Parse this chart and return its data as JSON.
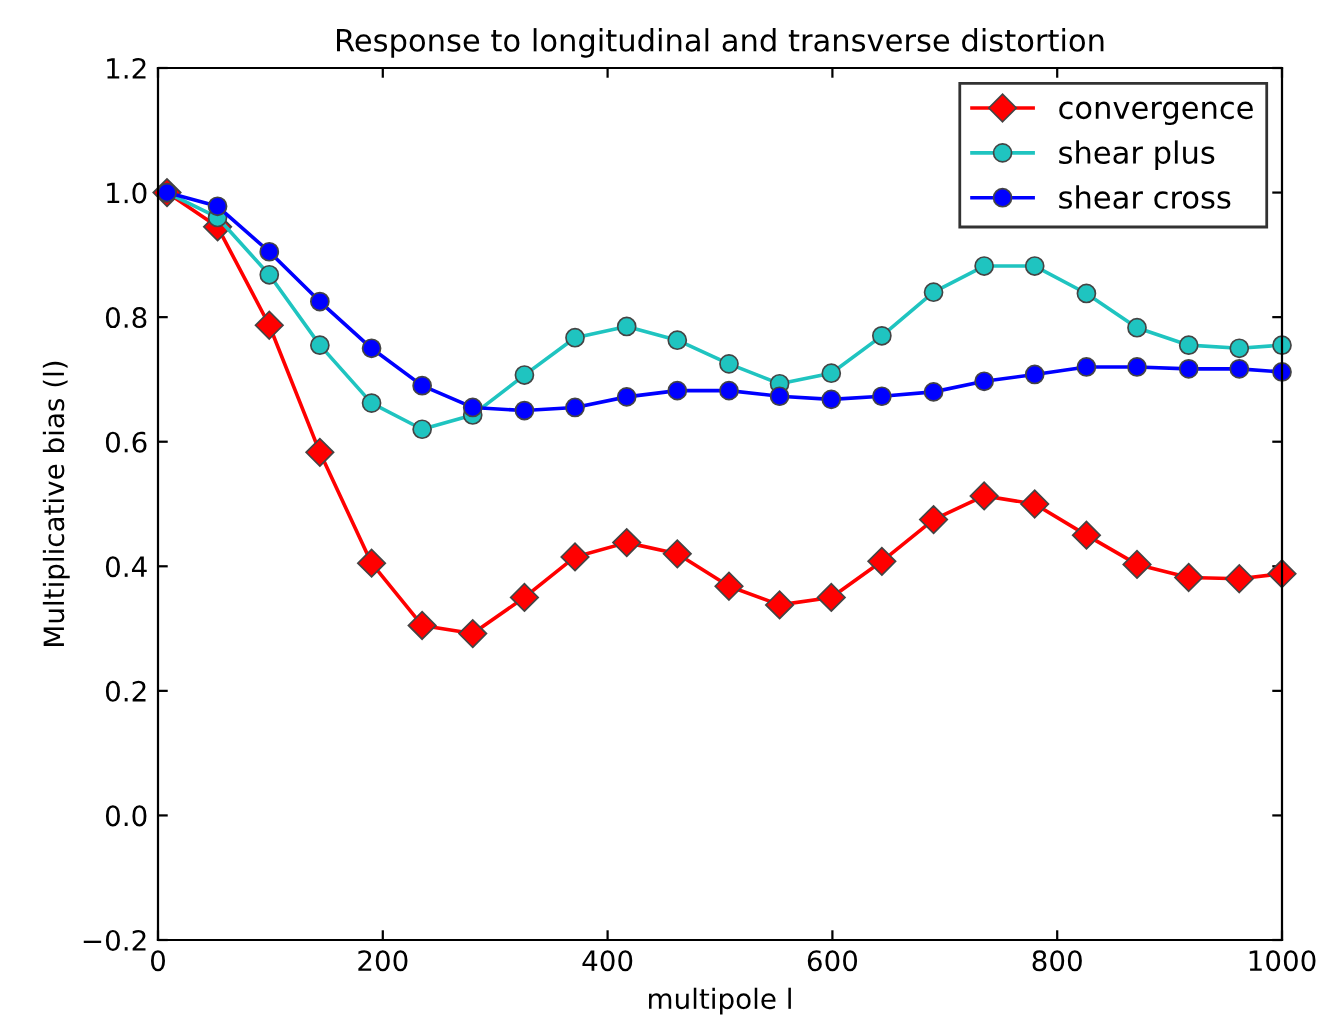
{
  "chart_data": {
    "type": "line",
    "title": "Response to longitudinal and transverse distortion",
    "xlabel": "multipole l",
    "ylabel": "Multiplicative bias (l)",
    "x": [
      8,
      53,
      99,
      144,
      190,
      235,
      280,
      326,
      371,
      417,
      462,
      508,
      553,
      599,
      644,
      690,
      735,
      780,
      826,
      871,
      917,
      962,
      1000
    ],
    "series": [
      {
        "name": "convergence",
        "color": "#ff0000",
        "marker": "diamond",
        "values": [
          1.0,
          0.945,
          0.787,
          0.583,
          0.405,
          0.305,
          0.292,
          0.35,
          0.415,
          0.438,
          0.42,
          0.368,
          0.338,
          0.35,
          0.408,
          0.475,
          0.513,
          0.5,
          0.45,
          0.403,
          0.382,
          0.38,
          0.388
        ]
      },
      {
        "name": "shear plus",
        "color": "#1fc4c0",
        "marker": "circle",
        "values": [
          1.0,
          0.96,
          0.868,
          0.755,
          0.662,
          0.62,
          0.643,
          0.707,
          0.767,
          0.785,
          0.763,
          0.725,
          0.693,
          0.71,
          0.77,
          0.84,
          0.882,
          0.882,
          0.838,
          0.783,
          0.755,
          0.75,
          0.755
        ]
      },
      {
        "name": "shear cross",
        "color": "#0000ff",
        "marker": "circle",
        "values": [
          1.0,
          0.978,
          0.905,
          0.825,
          0.75,
          0.69,
          0.655,
          0.65,
          0.655,
          0.672,
          0.682,
          0.682,
          0.673,
          0.668,
          0.673,
          0.68,
          0.697,
          0.708,
          0.72,
          0.72,
          0.717,
          0.717,
          0.712
        ]
      }
    ],
    "xlim": [
      0,
      1000
    ],
    "xticks": [
      0,
      200,
      400,
      600,
      800,
      1000
    ],
    "ylim": [
      -0.2,
      1.2
    ],
    "yticks": [
      {
        "value": -0.2,
        "label": "−0.2"
      },
      {
        "value": 0.0,
        "label": "0.0"
      },
      {
        "value": 0.2,
        "label": "0.2"
      },
      {
        "value": 0.4,
        "label": "0.4"
      },
      {
        "value": 0.6,
        "label": "0.6"
      },
      {
        "value": 0.8,
        "label": "0.8"
      },
      {
        "value": 1.0,
        "label": "1.0"
      },
      {
        "value": 1.2,
        "label": "1.2"
      }
    ],
    "grid": false,
    "legend": "top right",
    "line_style": "solid"
  }
}
